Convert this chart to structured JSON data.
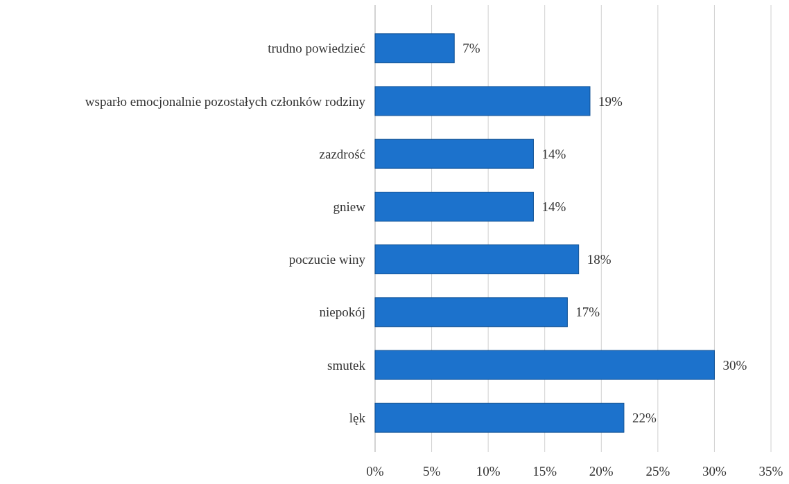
{
  "chart_data": {
    "type": "bar",
    "orientation": "horizontal",
    "categories": [
      "trudno powiedzieć",
      "wsparło emocjonalnie pozostałych członków rodziny",
      "zazdrość",
      "gniew",
      "poczucie winy",
      "niepokój",
      "smutek",
      "lęk"
    ],
    "values": [
      7,
      19,
      14,
      14,
      18,
      17,
      30,
      22
    ],
    "value_labels": [
      "7%",
      "19%",
      "14%",
      "14%",
      "18%",
      "17%",
      "30%",
      "22%"
    ],
    "color": "#1c72cc",
    "xlim": [
      0,
      35
    ],
    "xticks": [
      {
        "value": 0,
        "label": "0%"
      },
      {
        "value": 5,
        "label": "5%"
      },
      {
        "value": 10,
        "label": "10%"
      },
      {
        "value": 15,
        "label": "15%"
      },
      {
        "value": 20,
        "label": "20%"
      },
      {
        "value": 25,
        "label": "25%"
      },
      {
        "value": 30,
        "label": "30%"
      },
      {
        "value": 35,
        "label": "35%"
      }
    ],
    "grid": "x"
  }
}
